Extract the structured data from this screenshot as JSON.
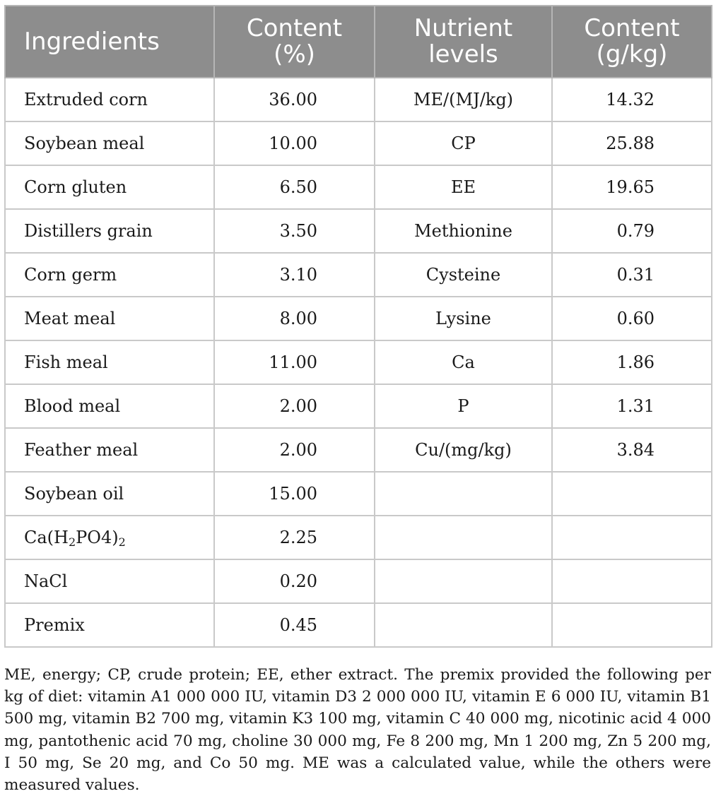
{
  "table": {
    "headers": {
      "ingredients": "Ingredients",
      "content_pct_line1": "Content",
      "content_pct_line2": "(%)",
      "nutrient_line1": "Nutrient",
      "nutrient_line2": "levels",
      "content_gkg_line1": "Content",
      "content_gkg_line2": "(g/kg)"
    },
    "rows": [
      {
        "ingredient": "Extruded corn",
        "content": "36.00",
        "nutrient": "ME/(MJ/kg)",
        "level": "14.32"
      },
      {
        "ingredient": "Soybean meal",
        "content": "10.00",
        "nutrient": "CP",
        "level": "25.88"
      },
      {
        "ingredient": "Corn gluten",
        "content": "6.50",
        "nutrient": "EE",
        "level": "19.65"
      },
      {
        "ingredient": "Distillers grain",
        "content": "3.50",
        "nutrient": "Methionine",
        "level": "0.79"
      },
      {
        "ingredient": "Corn germ",
        "content": "3.10",
        "nutrient": "Cysteine",
        "level": "0.31"
      },
      {
        "ingredient": "Meat meal",
        "content": "8.00",
        "nutrient": "Lysine",
        "level": "0.60"
      },
      {
        "ingredient": "Fish meal",
        "content": "11.00",
        "nutrient": "Ca",
        "level": "1.86"
      },
      {
        "ingredient": "Blood meal",
        "content": "2.00",
        "nutrient": "P",
        "level": "1.31"
      },
      {
        "ingredient": "Feather meal",
        "content": "2.00",
        "nutrient": "Cu/(mg/kg)",
        "level": "3.84"
      },
      {
        "ingredient": "Soybean oil",
        "content": "15.00",
        "nutrient": "",
        "level": ""
      },
      {
        "ingredient_parts": {
          "a": "Ca(H",
          "sub1": "2",
          "b": "PO4)",
          "sub2": "2"
        },
        "content": "2.25",
        "nutrient": "",
        "level": ""
      },
      {
        "ingredient": "NaCl",
        "content": "0.20",
        "nutrient": "",
        "level": ""
      },
      {
        "ingredient": "Premix",
        "content": "0.45",
        "nutrient": "",
        "level": ""
      }
    ]
  },
  "footnote": "ME, energy; CP, crude protein; EE, ether extract. The premix provided the following per kg of diet: vitamin A1 000 000 IU, vitamin D3 2 000 000 IU, vitamin E 6 000 IU, vitamin B1 500 mg, vitamin B2 700 mg, vitamin K3 100 mg, vitamin C 40 000 mg, nicotinic acid 4 000 mg, pantothenic acid 70 mg, choline 30 000 mg, Fe 8 200 mg, Mn 1 200 mg, Zn 5 200 mg, I 50 mg, Se 20 mg, and Co 50 mg. ME was a calculated value, while the others were measured values."
}
